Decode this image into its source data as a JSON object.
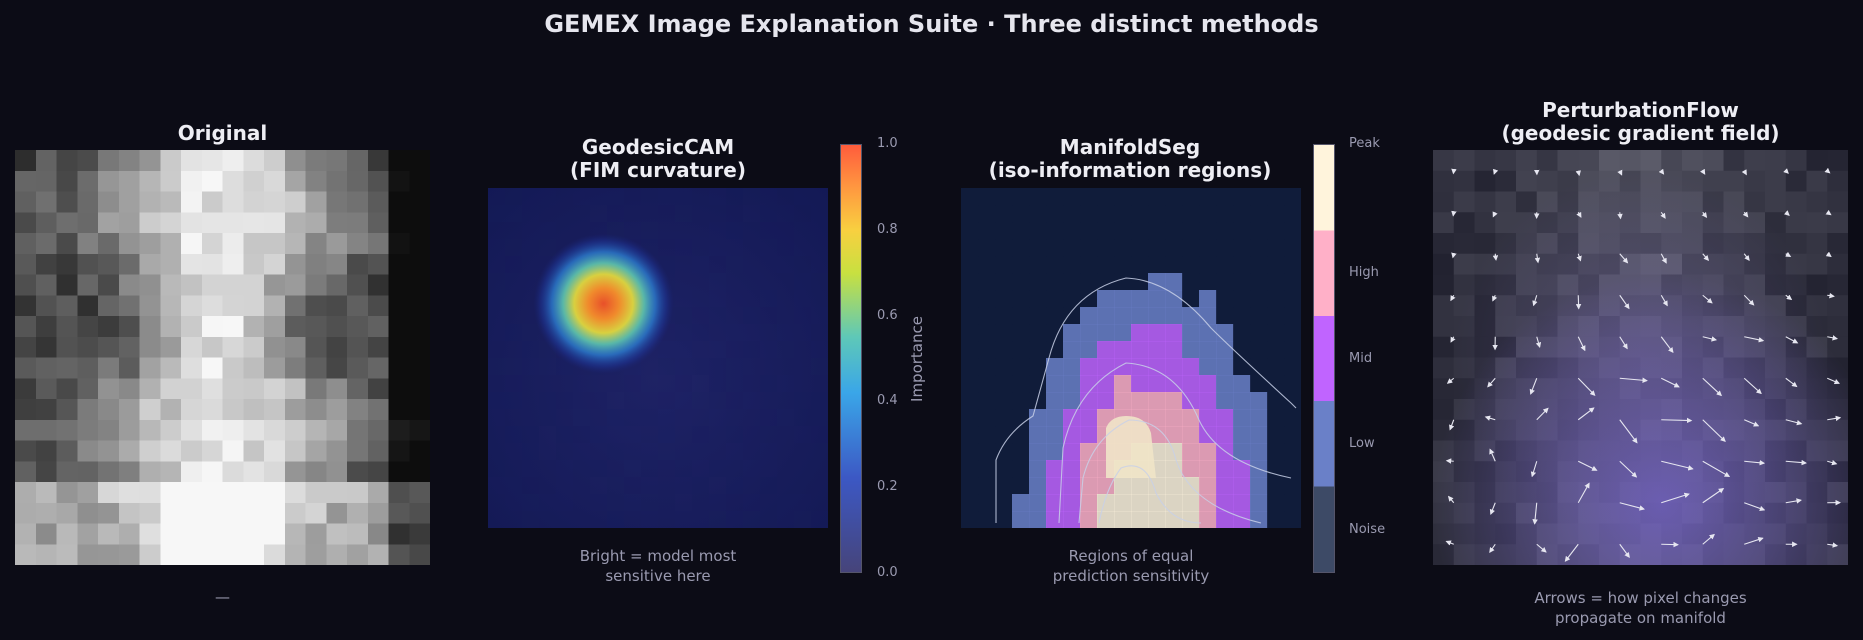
{
  "page_title": "GEMEX Image Explanation Suite  ·  Three distinct methods",
  "colors": {
    "background": "#0c0c16",
    "cam_low": "#1a1a55",
    "cam_peak": "#ff6a3c",
    "seg_noise": "#3d4a66",
    "seg_low": "#6a80c8",
    "seg_mid": "#c064ff",
    "seg_high": "#ffb0c8",
    "seg_peak": "#fff4dc",
    "flow_tint": "#7060c0"
  },
  "chart_data": [
    {
      "type": "heatmap",
      "title": "Original",
      "caption": "—",
      "grid_size": 20,
      "colormap": "gray"
    },
    {
      "type": "heatmap",
      "title": "GeodesicCAM",
      "subtitle": "(FIM curvature)",
      "caption_line1": "Bright = model most",
      "caption_line2": "sensitive here",
      "colorbar": {
        "label": "Importance",
        "range": [
          0.0,
          1.0
        ],
        "ticks": [
          "0.0",
          "0.2",
          "0.4",
          "0.6",
          "0.8",
          "1.0"
        ]
      },
      "peak": {
        "x": 0.34,
        "y": 0.34,
        "value": 1.0
      }
    },
    {
      "type": "heatmap",
      "title": "ManifoldSeg",
      "subtitle": "(iso-information regions)",
      "caption_line1": "Regions of equal",
      "caption_line2": "prediction sensitivity",
      "levels": [
        "Noise",
        "Low",
        "Mid",
        "High",
        "Peak"
      ]
    },
    {
      "type": "heatmap",
      "title": "PerturbationFlow",
      "subtitle": "(geodesic gradient field)",
      "caption_line1": "Arrows = how pixel changes",
      "caption_line2": "propagate on manifold",
      "grid_size": 10
    }
  ]
}
